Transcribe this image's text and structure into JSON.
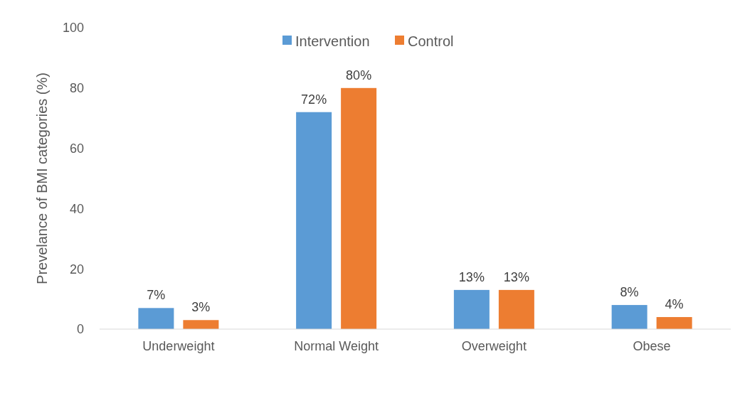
{
  "chart_data": {
    "type": "bar",
    "ylabel": "Prevelance of BMI categories (%)",
    "categories": [
      "Underweight",
      "Normal Weight",
      "Overweight",
      "Obese"
    ],
    "series": [
      {
        "name": "Intervention",
        "color": "#5b9bd5",
        "values": [
          7,
          72,
          13,
          8
        ],
        "value_labels": [
          "7%",
          "72%",
          "13%",
          "8%"
        ]
      },
      {
        "name": "Control",
        "color": "#ed7d31",
        "values": [
          3,
          80,
          13,
          4
        ],
        "value_labels": [
          "3%",
          "80%",
          "13%",
          "4%"
        ]
      }
    ],
    "ylim": [
      0,
      100
    ],
    "yticks": [
      0,
      20,
      40,
      60,
      80,
      100
    ],
    "grid": false,
    "legend": "top"
  }
}
